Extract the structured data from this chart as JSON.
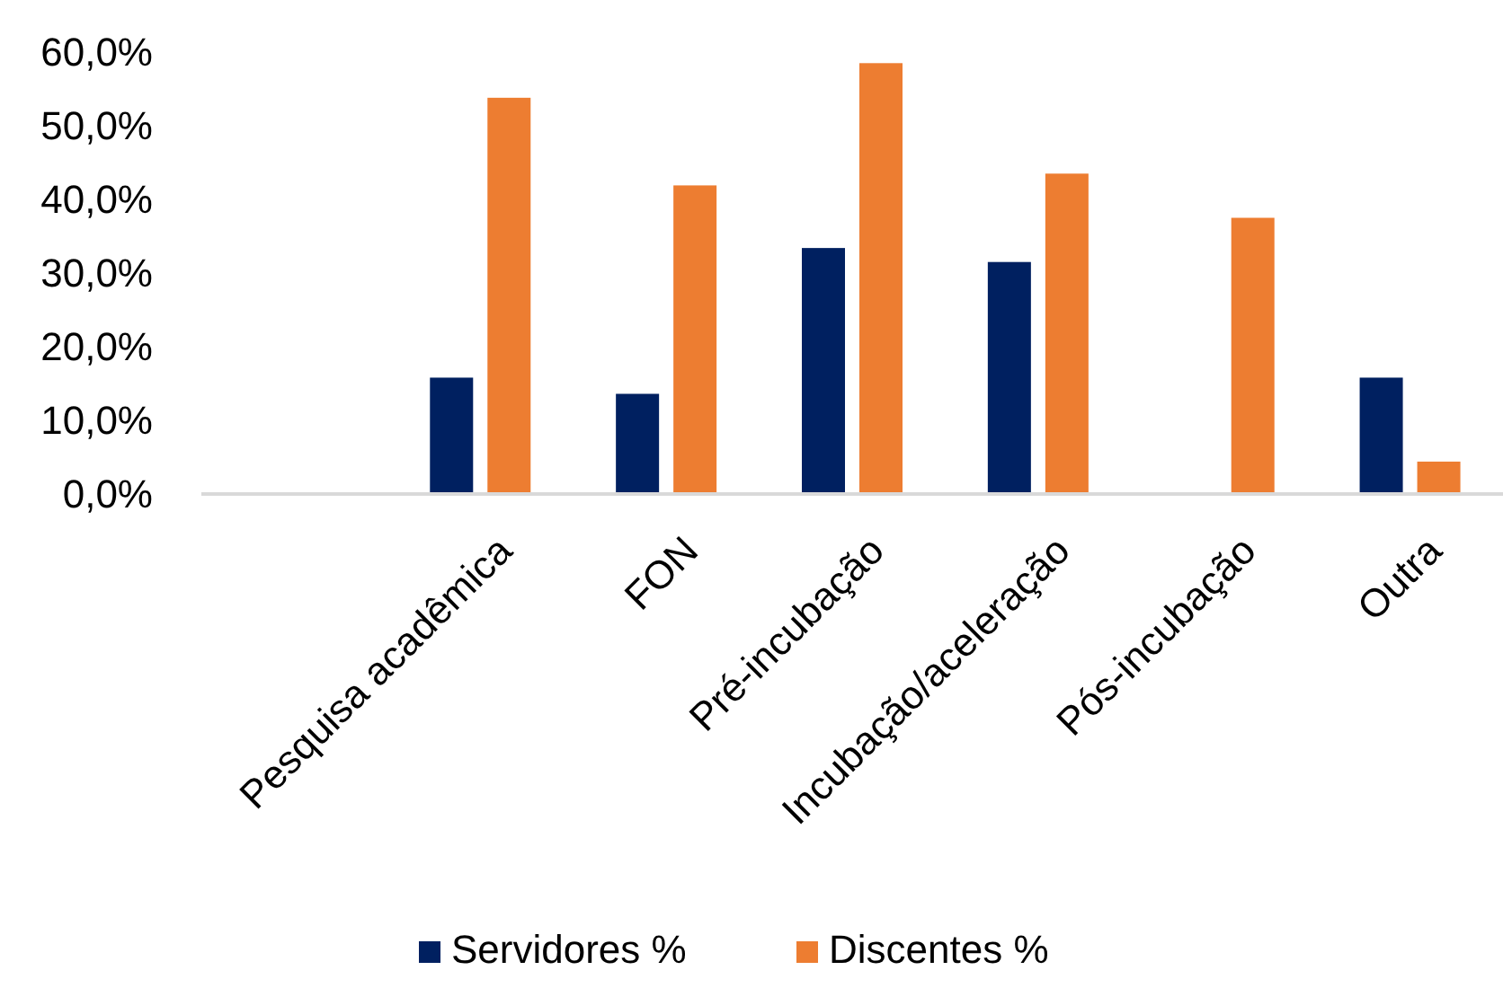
{
  "chart_data": {
    "type": "bar",
    "categories": [
      null,
      "Pesquisa acadêmica",
      "FON",
      "Pré-incubação",
      "Incubação/aceleração",
      "Pós-incubação",
      "Outra"
    ],
    "series": [
      {
        "name": "Servidores %",
        "color": "#002060",
        "values": [
          null,
          15.8,
          13.6,
          33.4,
          31.5,
          null,
          15.8
        ]
      },
      {
        "name": "Discentes %",
        "color": "#ed7d31",
        "values": [
          null,
          53.8,
          41.9,
          58.5,
          43.5,
          37.5,
          4.4
        ]
      }
    ],
    "ylim": [
      0,
      60
    ],
    "yticks": [
      {
        "value": 0,
        "label": "0,0%"
      },
      {
        "value": 10,
        "label": "10,0%"
      },
      {
        "value": 20,
        "label": "20,0%"
      },
      {
        "value": 30,
        "label": "30,0%"
      },
      {
        "value": 40,
        "label": "40,0%"
      },
      {
        "value": 50,
        "label": "50,0%"
      },
      {
        "value": 60,
        "label": "60,0%"
      }
    ],
    "grid": false,
    "legend": "bottom"
  }
}
